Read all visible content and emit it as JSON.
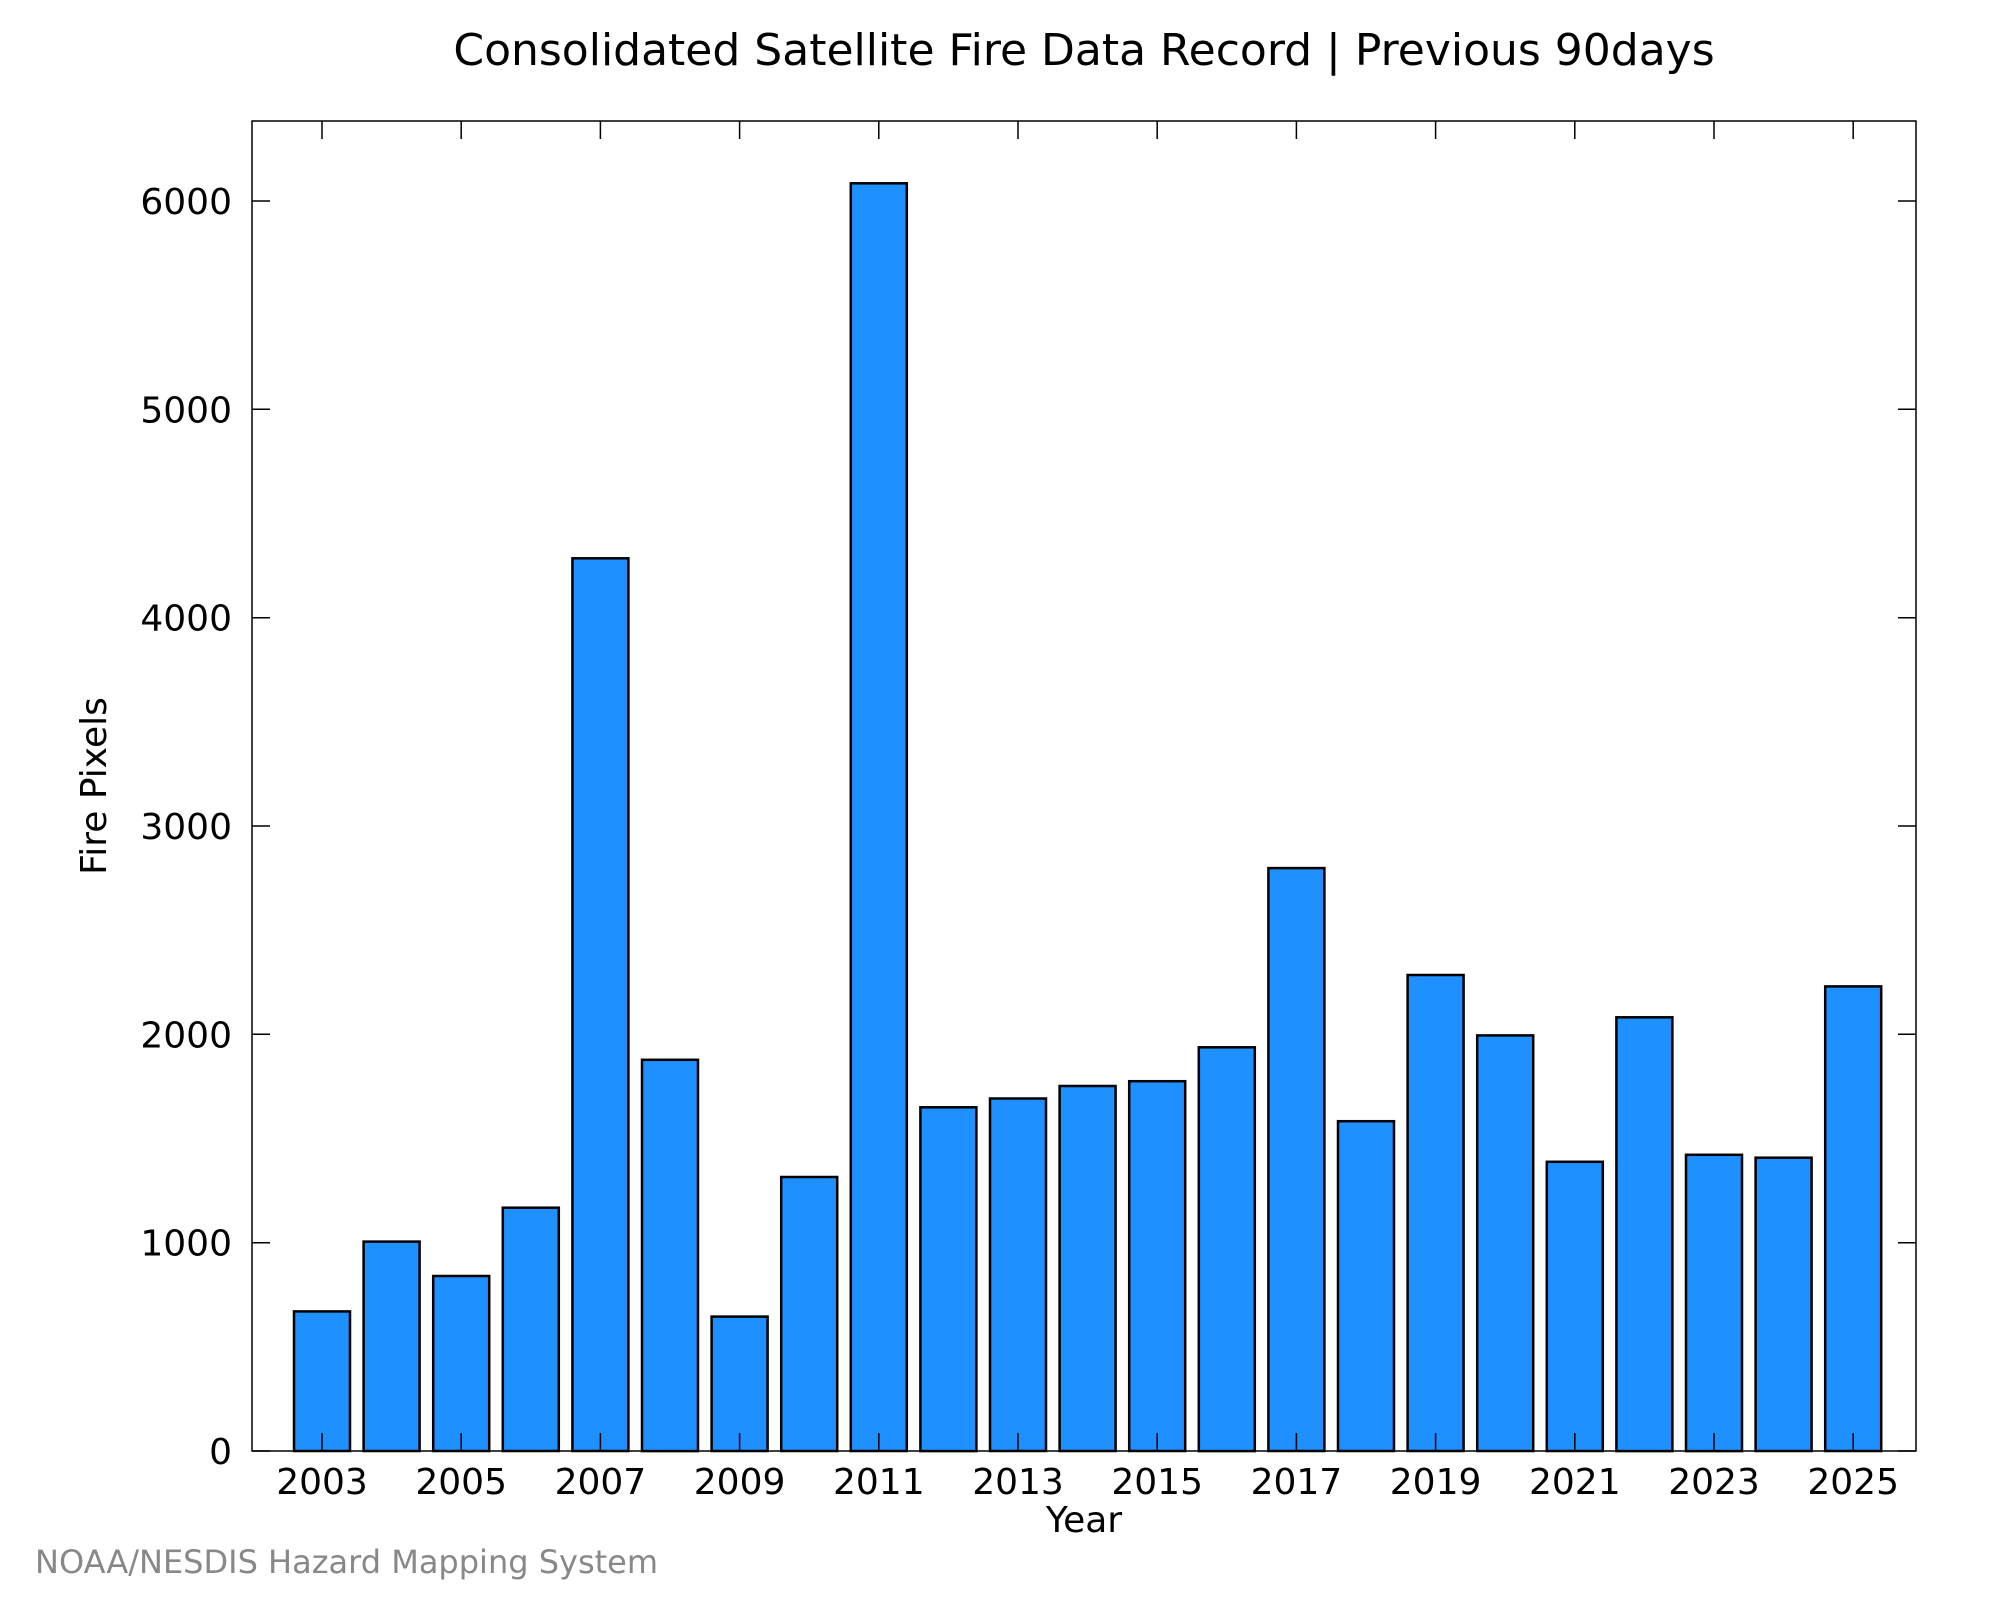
{
  "chart_data": {
    "type": "bar",
    "title": "Consolidated Satellite Fire Data Record | Previous 90days",
    "xlabel": "Year",
    "ylabel": "Fire Pixels",
    "categories": [
      "2003",
      "2004",
      "2005",
      "2006",
      "2007",
      "2008",
      "2009",
      "2010",
      "2011",
      "2012",
      "2013",
      "2014",
      "2015",
      "2016",
      "2017",
      "2018",
      "2019",
      "2020",
      "2021",
      "2022",
      "2023",
      "2024",
      "2025"
    ],
    "values": [
      670,
      1005,
      840,
      1168,
      4285,
      1878,
      645,
      1315,
      6085,
      1650,
      1692,
      1752,
      1775,
      1938,
      2798,
      1583,
      2285,
      1995,
      1388,
      2082,
      1422,
      1408,
      2230
    ],
    "x_tick_labels": [
      "2003",
      "2005",
      "2007",
      "2009",
      "2011",
      "2013",
      "2015",
      "2017",
      "2019",
      "2021",
      "2023",
      "2025"
    ],
    "y_tick_labels": [
      "0",
      "1000",
      "2000",
      "3000",
      "4000",
      "5000",
      "6000"
    ],
    "y_ticks": [
      0,
      1000,
      2000,
      3000,
      4000,
      5000,
      6000
    ],
    "ylim": [
      0,
      6400
    ],
    "grid": false,
    "legend": "none",
    "bar_color": "#1e90ff",
    "bar_edge_color": "#000000"
  },
  "credit": "NOAA/NESDIS Hazard Mapping System"
}
